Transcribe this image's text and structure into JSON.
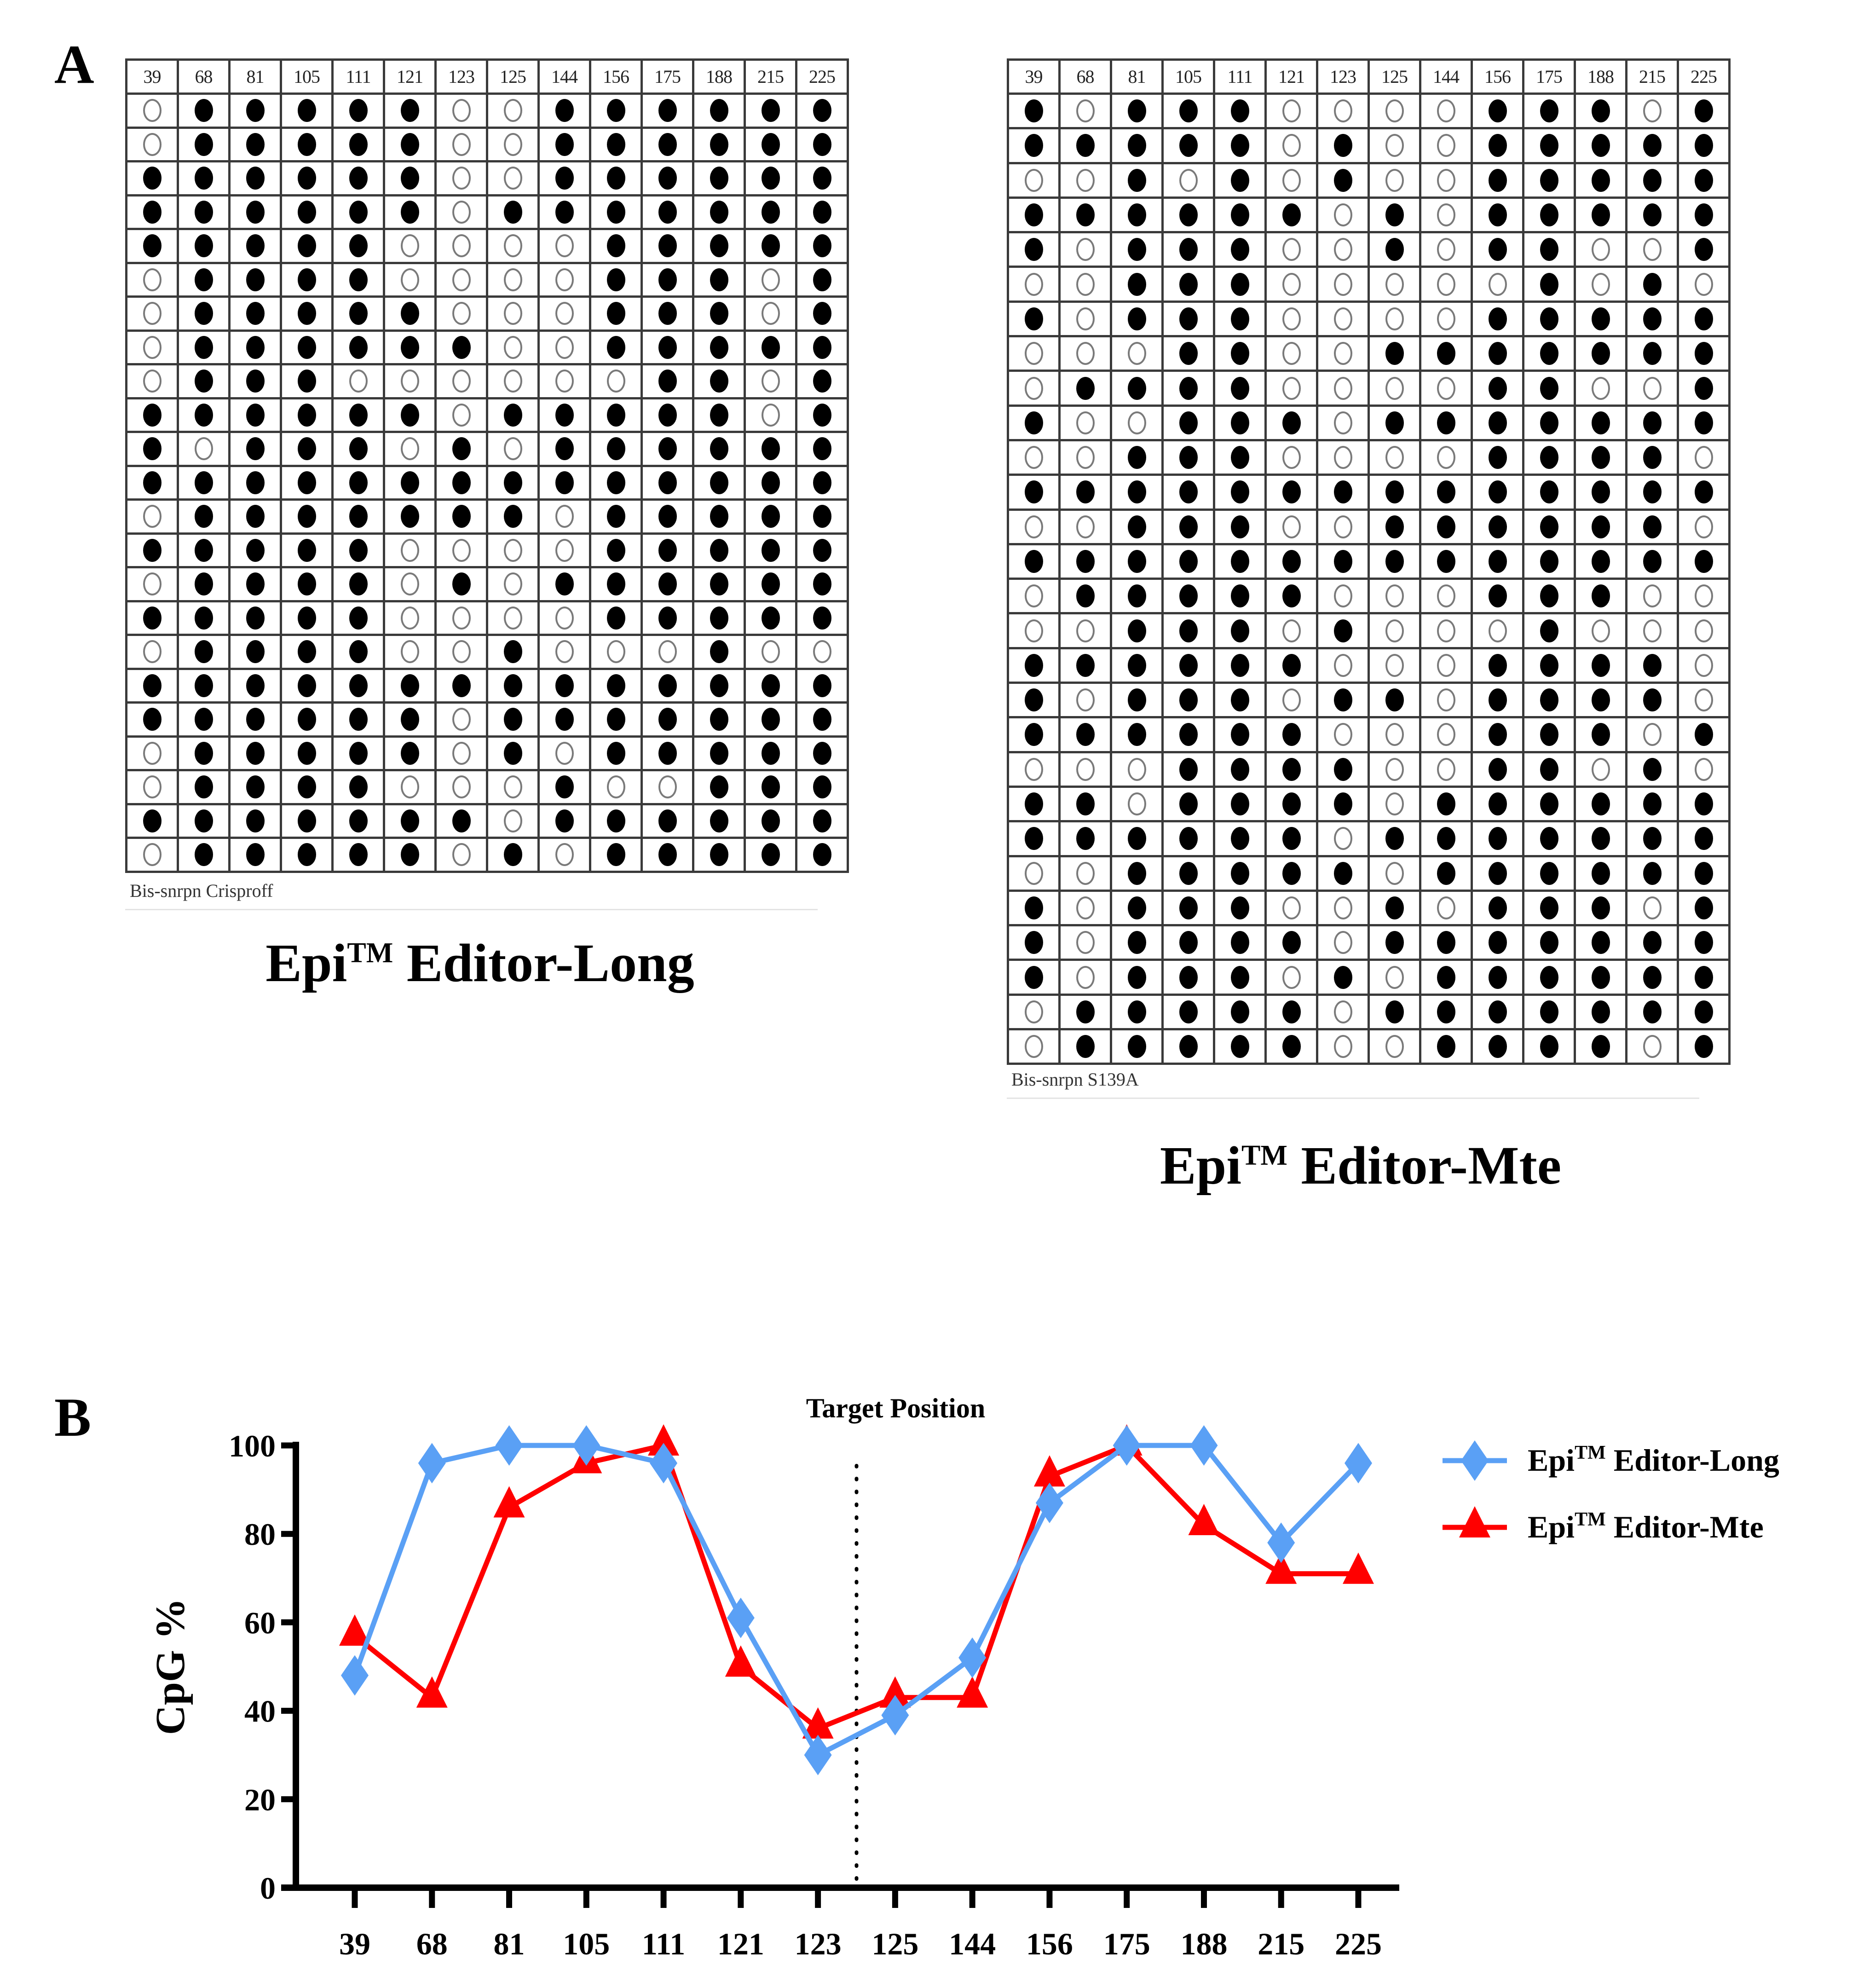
{
  "panels": {
    "a_label": "A",
    "b_label": "B"
  },
  "grids": [
    {
      "id": "long",
      "title_main": "Epi",
      "title_tm": "TM",
      "title_rest": " Editor-Long",
      "caption": "Bis-snrpn Crisproff",
      "positions": [
        "39",
        "68",
        "81",
        "105",
        "111",
        "121",
        "123",
        "125",
        "144",
        "156",
        "175",
        "188",
        "215",
        "225"
      ],
      "rows": [
        "01111100111111",
        "01111100111111",
        "11111100111111",
        "11111101111111",
        "11111000011111",
        "01111000011101",
        "01111100011101",
        "01111110011111",
        "01110000001101",
        "11111101111101",
        "10111010111111",
        "11111111111111",
        "01111111011111",
        "11111000011111",
        "01111010111111",
        "11111000011111",
        "01111001000100",
        "11111111111111",
        "11111101111111",
        "01111101011111",
        "01111000100111",
        "11111110111111",
        "01111101011111"
      ]
    },
    {
      "id": "mte",
      "title_main": "Epi",
      "title_tm": "TM",
      "title_rest": " Editor-Mte",
      "caption": "Bis-snrpn S139A",
      "positions": [
        "39",
        "68",
        "81",
        "105",
        "111",
        "121",
        "123",
        "125",
        "144",
        "156",
        "175",
        "188",
        "215",
        "225"
      ],
      "rows": [
        "10111000011101",
        "11111010011111",
        "00101010011111",
        "11111101011111",
        "10111001011001",
        "00111000001010",
        "10111000011111",
        "00011001111111",
        "01111000011001",
        "10011101111111",
        "00111000011110",
        "11111111111111",
        "00111001111110",
        "11111111111111",
        "01111100011100",
        "00111010001000",
        "11111100011110",
        "10111011011110",
        "11111100011101",
        "00011110011010",
        "11011110111111",
        "11111101111111",
        "00111110111111",
        "10111001011101",
        "10111101111111",
        "10111010111111",
        "01111101111111",
        "01111100111101"
      ]
    }
  ],
  "chart_data": {
    "type": "line",
    "title": "",
    "xlabel": "",
    "ylabel": "CpG %",
    "ylim": [
      0,
      100
    ],
    "yticks": [
      0,
      20,
      40,
      60,
      80,
      100
    ],
    "grid": false,
    "legend_position": "right-top",
    "categories": [
      "39",
      "68",
      "81",
      "105",
      "111",
      "121",
      "123",
      "125",
      "144",
      "156",
      "175",
      "188",
      "215",
      "225"
    ],
    "annotation": {
      "text": "Target Position",
      "between": [
        "123",
        "125"
      ],
      "style": "dotted-vertical-line"
    },
    "series": [
      {
        "name": "Epi™ Editor-Long",
        "name_main": "Epi",
        "name_tm": "TM",
        "name_rest": " Editor-Long",
        "color": "#5aa0f5",
        "marker": "diamond",
        "values": [
          48,
          96,
          100,
          100,
          96,
          61,
          30,
          39,
          52,
          87,
          100,
          100,
          78,
          96
        ]
      },
      {
        "name": "Epi™ Editor-Mte",
        "name_main": "Epi",
        "name_tm": "TM",
        "name_rest": " Editor-Mte",
        "color": "#ff0000",
        "marker": "triangle",
        "values": [
          57,
          43,
          86,
          96,
          100,
          50,
          36,
          43,
          43,
          93,
          100,
          82,
          71,
          71
        ]
      }
    ]
  }
}
